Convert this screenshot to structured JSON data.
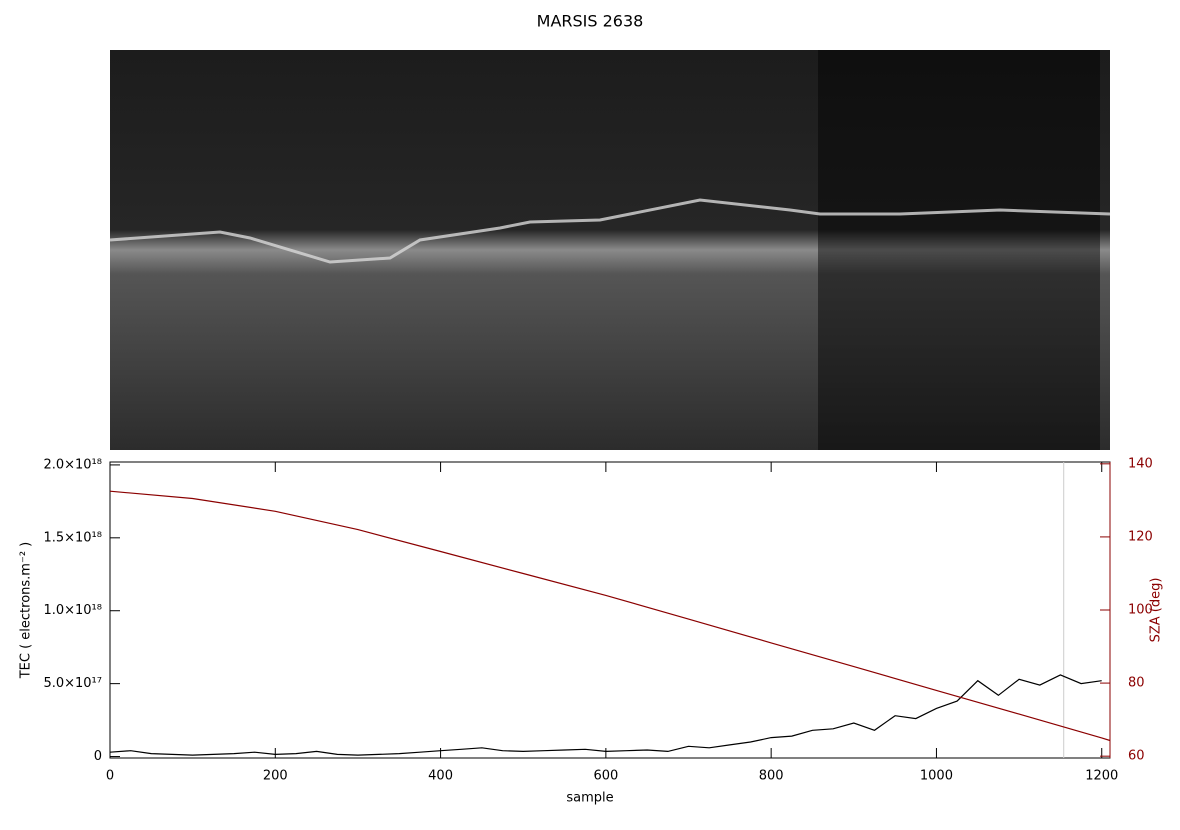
{
  "chart_data": {
    "type": "line",
    "title": "MARSIS 2638",
    "xlabel": "sample",
    "ylabel": "TEC ( electrons.m⁻² )",
    "y2label": "SZA (deg)",
    "xlim": [
      0,
      1210
    ],
    "xticks": [
      0,
      200,
      400,
      600,
      800,
      1000,
      1200
    ],
    "ylim": [
      -1e+16,
      2.02e+18
    ],
    "yticks": [
      {
        "value": 0,
        "label": "0"
      },
      {
        "value": 5e+17,
        "label": "5.0×10¹⁷"
      },
      {
        "value": 1e+18,
        "label": "1.0×10¹⁸"
      },
      {
        "value": 1.5e+18,
        "label": "1.5×10¹⁸"
      },
      {
        "value": 2e+18,
        "label": "2.0×10¹⁸"
      }
    ],
    "y2lim": [
      59.5,
      140.5
    ],
    "y2ticks": [
      60,
      80,
      100,
      120,
      140
    ],
    "y2color": "#8b0000",
    "marker_x": 1154,
    "series": [
      {
        "color": "#000000",
        "axis": "y",
        "x": [
          0,
          25,
          50,
          75,
          100,
          125,
          150,
          175,
          200,
          225,
          250,
          275,
          300,
          325,
          350,
          375,
          400,
          425,
          450,
          475,
          500,
          525,
          550,
          575,
          600,
          625,
          650,
          675,
          700,
          725,
          750,
          775,
          800,
          825,
          850,
          875,
          900,
          925,
          950,
          975,
          1000,
          1025,
          1050,
          1075,
          1100,
          1125,
          1150,
          1175,
          1200
        ],
        "values": [
          3e+16,
          4e+16,
          2e+16,
          1.5e+16,
          1e+16,
          1.5e+16,
          2e+16,
          3e+16,
          1.5e+16,
          2e+16,
          3.5e+16,
          1.5e+16,
          1e+16,
          1.5e+16,
          2e+16,
          3e+16,
          4e+16,
          5e+16,
          6e+16,
          4e+16,
          3.5e+16,
          4e+16,
          4.5e+16,
          5e+16,
          3.5e+16,
          4e+16,
          4.5e+16,
          3.5e+16,
          7e+16,
          6e+16,
          8e+16,
          1e+17,
          1.3e+17,
          1.4e+17,
          1.8e+17,
          1.9e+17,
          2.3e+17,
          1.8e+17,
          2.8e+17,
          2.6e+17,
          3.3e+17,
          3.8e+17,
          5.2e+17,
          4.2e+17,
          5.3e+17,
          4.9e+17,
          5.6e+17,
          5e+17,
          5.2e+17
        ]
      },
      {
        "color": "#8b0000",
        "axis": "y2",
        "x": [
          0,
          100,
          200,
          300,
          400,
          500,
          600,
          700,
          800,
          900,
          1000,
          1100,
          1200,
          1210
        ],
        "values": [
          132.5,
          130.5,
          127,
          122,
          116,
          110,
          104,
          97.5,
          91,
          84.5,
          78,
          71.5,
          65,
          64.3
        ]
      }
    ]
  }
}
